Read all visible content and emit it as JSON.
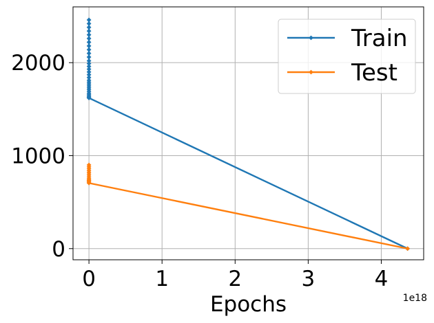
{
  "chart_data": {
    "type": "line",
    "title": "",
    "xlabel": "Epochs",
    "ylabel": "",
    "x_offset_label": "1e18",
    "x_scale": 1e+18,
    "xlim": [
      -0.218,
      4.58
    ],
    "ylim": [
      -120,
      2600
    ],
    "x_ticks": [
      0,
      1,
      2,
      3,
      4
    ],
    "x_tick_labels": [
      "0",
      "1",
      "2",
      "3",
      "4"
    ],
    "y_ticks": [
      0,
      1000,
      2000
    ],
    "y_tick_labels": [
      "0",
      "1000",
      "2000"
    ],
    "grid": true,
    "legend_position": "upper-right",
    "series": [
      {
        "name": "Train",
        "color": "#1f77b4",
        "x": [
          0,
          0,
          0,
          0,
          0,
          0,
          0,
          0,
          0,
          0,
          0,
          0,
          0,
          0,
          0,
          0,
          0,
          0,
          0,
          0,
          0,
          0,
          0,
          0,
          0,
          0,
          0,
          0,
          0,
          0,
          4.36
        ],
        "y": [
          2460,
          2420,
          2380,
          2340,
          2300,
          2260,
          2220,
          2180,
          2140,
          2100,
          2060,
          2020,
          1990,
          1960,
          1930,
          1900,
          1870,
          1840,
          1810,
          1790,
          1770,
          1750,
          1730,
          1710,
          1690,
          1670,
          1655,
          1640,
          1630,
          1620,
          0
        ]
      },
      {
        "name": "Test",
        "color": "#ff7f0e",
        "x": [
          0,
          0,
          0,
          0,
          0,
          0,
          0,
          0,
          0,
          0,
          0,
          0,
          0,
          4.36
        ],
        "y": [
          900,
          880,
          860,
          840,
          820,
          800,
          780,
          760,
          745,
          735,
          725,
          715,
          705,
          0
        ]
      }
    ]
  }
}
